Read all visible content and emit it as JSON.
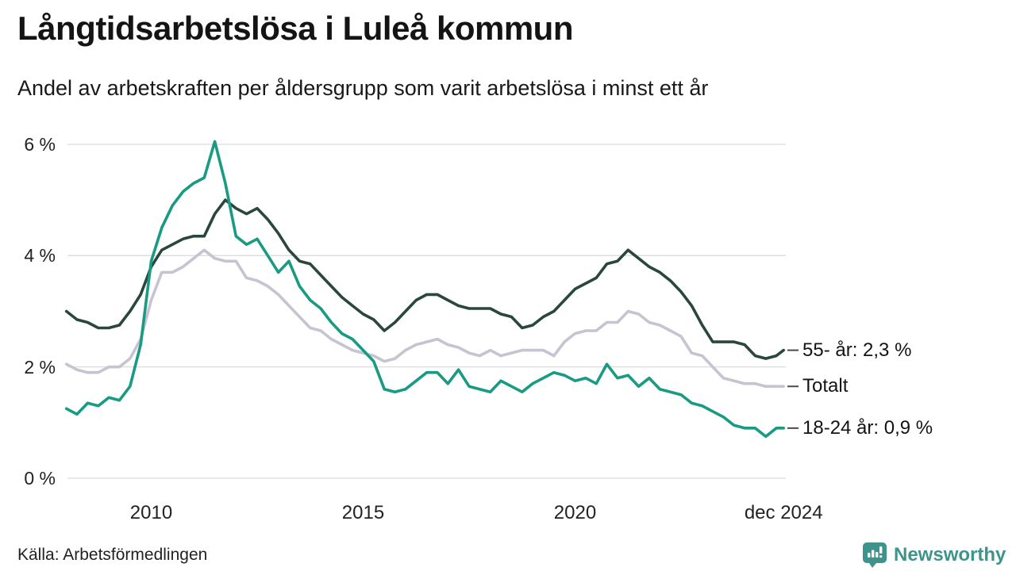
{
  "title": "Långtidsarbetslösa i Luleå kommun",
  "subtitle": "Andel av arbetskraften per åldersgrupp som varit arbetslösa i minst ett år",
  "source": "Källa: Arbetsförmedlingen",
  "branding": {
    "name": "Newsworthy",
    "color": "#3e948b",
    "icon": "chart-bubble-icon"
  },
  "colors": {
    "grid": "#dcdcdc",
    "end_tick": "#4a4a4a",
    "text": "#141414"
  },
  "chart_data": {
    "type": "line",
    "title": "Långtidsarbetslösa i Luleå kommun",
    "subtitle": "Andel av arbetskraften per åldersgrupp som varit arbetslösa i minst ett år",
    "xlabel": "",
    "ylabel": "",
    "x_unit": "decimal_year",
    "xlim": [
      2008.0,
      2024.92
    ],
    "ylim": [
      0,
      6.4
    ],
    "grid": "horizontal",
    "legend_position": "right-end-labels",
    "y_ticks": [
      {
        "value": 0,
        "label": "0 %"
      },
      {
        "value": 2,
        "label": "2 %"
      },
      {
        "value": 4,
        "label": "4 %"
      },
      {
        "value": 6,
        "label": "6 %"
      }
    ],
    "x_ticks": [
      {
        "value": 2010,
        "label": "2010"
      },
      {
        "value": 2015,
        "label": "2015"
      },
      {
        "value": 2020,
        "label": "2020"
      },
      {
        "value": 2024.92,
        "label": "dec 2024"
      }
    ],
    "x": [
      2008,
      2008.25,
      2008.5,
      2008.75,
      2009,
      2009.25,
      2009.5,
      2009.75,
      2010,
      2010.25,
      2010.5,
      2010.75,
      2011,
      2011.25,
      2011.5,
      2011.75,
      2012,
      2012.25,
      2012.5,
      2012.75,
      2013,
      2013.25,
      2013.5,
      2013.75,
      2014,
      2014.25,
      2014.5,
      2014.75,
      2015,
      2015.25,
      2015.5,
      2015.75,
      2016,
      2016.25,
      2016.5,
      2016.75,
      2017,
      2017.25,
      2017.5,
      2017.75,
      2018,
      2018.25,
      2018.5,
      2018.75,
      2019,
      2019.25,
      2019.5,
      2019.75,
      2020,
      2020.25,
      2020.5,
      2020.75,
      2021,
      2021.25,
      2021.5,
      2021.75,
      2022,
      2022.25,
      2022.5,
      2022.75,
      2023,
      2023.25,
      2023.5,
      2023.75,
      2024,
      2024.25,
      2024.5,
      2024.75,
      2024.92
    ],
    "series": [
      {
        "name": "55- år",
        "end_label": "55- år: 2,3 %",
        "end_value_label": "2,3 %",
        "color": "#2a473d",
        "values": [
          3.0,
          2.85,
          2.8,
          2.7,
          2.7,
          2.75,
          3.0,
          3.3,
          3.8,
          4.1,
          4.2,
          4.3,
          4.35,
          4.35,
          4.75,
          5.0,
          4.85,
          4.75,
          4.85,
          4.65,
          4.4,
          4.1,
          3.9,
          3.85,
          3.65,
          3.45,
          3.25,
          3.1,
          2.95,
          2.85,
          2.65,
          2.8,
          3.0,
          3.2,
          3.3,
          3.3,
          3.2,
          3.1,
          3.05,
          3.05,
          3.05,
          2.95,
          2.9,
          2.7,
          2.75,
          2.9,
          3.0,
          3.2,
          3.4,
          3.5,
          3.6,
          3.85,
          3.9,
          4.1,
          3.95,
          3.8,
          3.7,
          3.55,
          3.35,
          3.1,
          2.75,
          2.45,
          2.45,
          2.45,
          2.4,
          2.2,
          2.15,
          2.2,
          2.3
        ]
      },
      {
        "name": "Totalt",
        "end_label": "Totalt",
        "end_value_label": "",
        "color": "#c7c4d1",
        "values": [
          2.05,
          1.95,
          1.9,
          1.9,
          2.0,
          2.0,
          2.15,
          2.5,
          3.2,
          3.7,
          3.7,
          3.8,
          3.95,
          4.1,
          3.95,
          3.9,
          3.9,
          3.6,
          3.55,
          3.45,
          3.3,
          3.1,
          2.9,
          2.7,
          2.65,
          2.5,
          2.4,
          2.3,
          2.25,
          2.2,
          2.1,
          2.15,
          2.3,
          2.4,
          2.45,
          2.5,
          2.4,
          2.35,
          2.25,
          2.2,
          2.3,
          2.2,
          2.25,
          2.3,
          2.3,
          2.3,
          2.2,
          2.45,
          2.6,
          2.65,
          2.65,
          2.8,
          2.8,
          3.0,
          2.95,
          2.8,
          2.75,
          2.65,
          2.55,
          2.25,
          2.2,
          2.0,
          1.8,
          1.75,
          1.7,
          1.7,
          1.65,
          1.65,
          1.65
        ]
      },
      {
        "name": "18-24 år",
        "end_label": "18-24 år: 0,9 %",
        "end_value_label": "0,9 %",
        "color": "#189b82",
        "values": [
          1.25,
          1.15,
          1.35,
          1.3,
          1.45,
          1.4,
          1.65,
          2.4,
          3.9,
          4.5,
          4.9,
          5.15,
          5.3,
          5.4,
          6.05,
          5.3,
          4.35,
          4.2,
          4.3,
          4.0,
          3.7,
          3.9,
          3.45,
          3.2,
          3.05,
          2.8,
          2.6,
          2.5,
          2.3,
          2.1,
          1.6,
          1.55,
          1.6,
          1.75,
          1.9,
          1.9,
          1.7,
          1.95,
          1.65,
          1.6,
          1.55,
          1.75,
          1.65,
          1.55,
          1.7,
          1.8,
          1.9,
          1.85,
          1.75,
          1.8,
          1.7,
          2.05,
          1.8,
          1.85,
          1.65,
          1.8,
          1.6,
          1.55,
          1.5,
          1.35,
          1.3,
          1.2,
          1.1,
          0.95,
          0.9,
          0.9,
          0.75,
          0.9,
          0.9
        ]
      }
    ]
  }
}
